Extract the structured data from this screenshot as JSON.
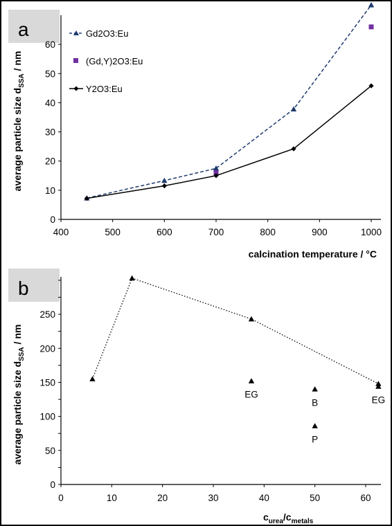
{
  "chart_data": [
    {
      "panel_label": "a",
      "type": "line",
      "xlabel": "calcination temperature / °C",
      "ylabel": "average particle size d",
      "ylabel_sub": "SSA",
      "ylabel_unit": " / nm",
      "xlim": [
        400,
        1000
      ],
      "ylim": [
        0,
        70
      ],
      "xticks": [
        "400",
        "500",
        "600",
        "700",
        "800",
        "900",
        "1000"
      ],
      "yticks": [
        "0",
        "10",
        "20",
        "30",
        "40",
        "50",
        "60"
      ],
      "legend_position": "top-left",
      "grid": false,
      "series": [
        {
          "name": "Gd2O3:Eu",
          "style": "dashed",
          "marker": "triangle",
          "color": "#1f3a6e",
          "x": [
            450,
            600,
            700,
            850,
            1000
          ],
          "y": [
            7.3,
            13.3,
            17.5,
            37.8,
            73.5
          ]
        },
        {
          "name": "(Gd,Y)2O3:Eu",
          "style": "none",
          "marker": "square",
          "color": "#7030a0",
          "x": [
            700,
            1000
          ],
          "y": [
            16.0,
            66.0
          ]
        },
        {
          "name": "Y2O3:Eu",
          "style": "solid",
          "marker": "diamond",
          "color": "#000000",
          "x": [
            450,
            600,
            700,
            850,
            1000
          ],
          "y": [
            7.2,
            11.5,
            15.0,
            24.2,
            45.8
          ]
        }
      ]
    },
    {
      "panel_label": "b",
      "type": "scatter",
      "xlabel": "c",
      "xlabel_sub1": "urea",
      "xlabel_mid": "/c",
      "xlabel_sub2": "metals",
      "ylabel": "average particle size d",
      "ylabel_sub": "SSA",
      "ylabel_unit": " / nm",
      "xlim": [
        0,
        63
      ],
      "ylim": [
        0,
        305
      ],
      "xticks": [
        "0",
        "10",
        "20",
        "30",
        "40",
        "50",
        "60"
      ],
      "yticks": [
        "0",
        "50",
        "100",
        "150",
        "200",
        "250"
      ],
      "grid": false,
      "series": [
        {
          "style": "dotted",
          "marker": "triangle",
          "color": "#000000",
          "x": [
            6.2,
            14.0,
            37.5,
            62.5
          ],
          "y": [
            155,
            303,
            243,
            148
          ]
        },
        {
          "style": "none",
          "marker": "triangle",
          "color": "#000000",
          "x": [
            37.5,
            50,
            50,
            62.5
          ],
          "y": [
            152,
            140,
            86,
            144
          ]
        }
      ],
      "annotations": [
        {
          "text": "EG",
          "x": 37.5,
          "y": 152
        },
        {
          "text": "B",
          "x": 50,
          "y": 140
        },
        {
          "text": "P",
          "x": 50,
          "y": 86
        },
        {
          "text": "EG",
          "x": 62.5,
          "y": 144
        }
      ]
    }
  ]
}
